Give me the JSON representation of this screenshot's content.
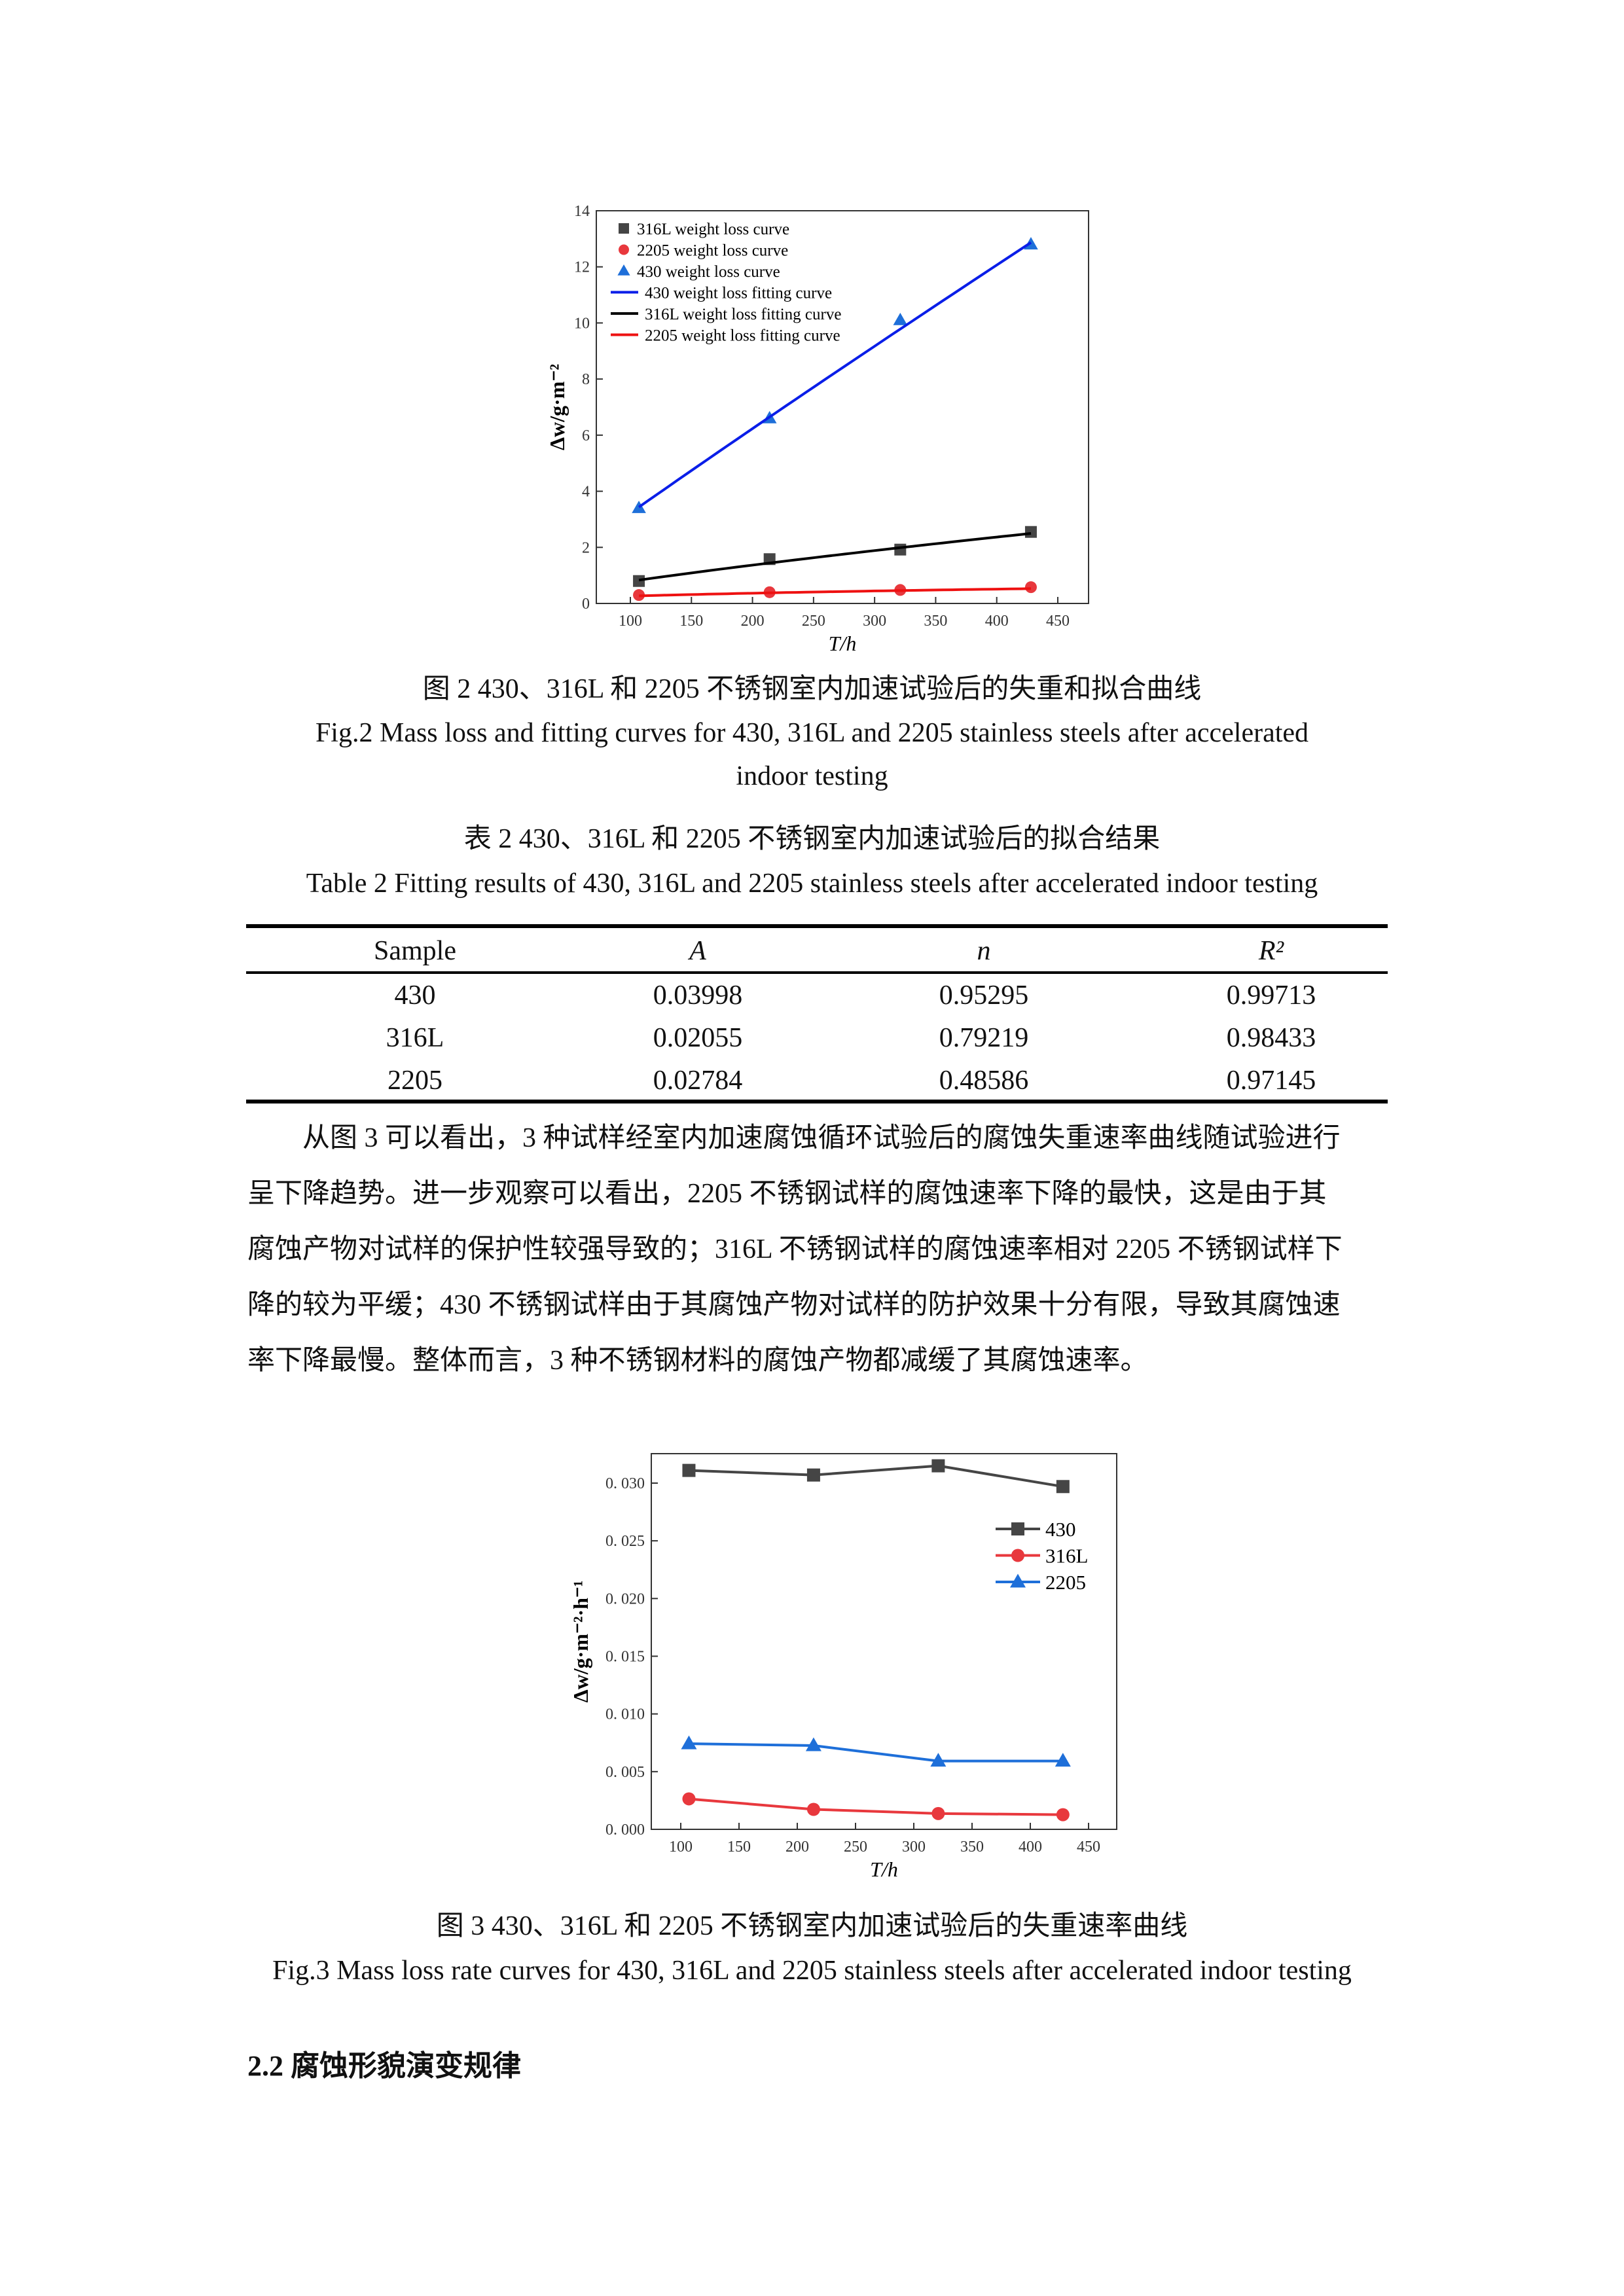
{
  "figure2": {
    "caption_cn": "图 2 430、316L 和 2205 不锈钢室内加速试验后的失重和拟合曲线",
    "caption_en_line1": "Fig.2 Mass loss and fitting curves for 430, 316L and 2205 stainless steels after accelerated",
    "caption_en_line2": "indoor testing"
  },
  "table2": {
    "caption_cn": "表 2 430、316L 和 2205 不锈钢室内加速试验后的拟合结果",
    "caption_en": "Table 2 Fitting results of 430, 316L and 2205 stainless steels after accelerated indoor testing",
    "headers": [
      "Sample",
      "A",
      "n",
      "R²"
    ],
    "rows": [
      [
        "430",
        "0.03998",
        "0.95295",
        "0.99713"
      ],
      [
        "316L",
        "0.02055",
        "0.79219",
        "0.98433"
      ],
      [
        "2205",
        "0.02784",
        "0.48586",
        "0.97145"
      ]
    ]
  },
  "paragraph": {
    "lines": [
      "从图 3 可以看出，3 种试样经室内加速腐蚀循环试验后的腐蚀失重速率曲线随试验进行",
      "呈下降趋势。进一步观察可以看出，2205 不锈钢试样的腐蚀速率下降的最快，这是由于其",
      "腐蚀产物对试样的保护性较强导致的；316L 不锈钢试样的腐蚀速率相对 2205 不锈钢试样下",
      "降的较为平缓；430 不锈钢试样由于其腐蚀产物对试样的防护效果十分有限，导致其腐蚀速",
      "率下降最慢。整体而言，3 种不锈钢材料的腐蚀产物都减缓了其腐蚀速率。"
    ]
  },
  "figure3": {
    "caption_cn": "图 3 430、316L 和 2205 不锈钢室内加速试验后的失重速率曲线",
    "caption_en": "Fig.3 Mass loss rate curves for 430, 316L and 2205 stainless steels after accelerated indoor testing"
  },
  "section_heading": "2.2 腐蚀形貌演变规律",
  "chart_data": [
    {
      "type": "scatter",
      "xlabel": "T/h",
      "ylabel": "Δw/g·m⁻²",
      "xlim": [
        75,
        475
      ],
      "ylim": [
        0,
        14
      ],
      "xticks": [
        "100",
        "150",
        "200",
        "250",
        "300",
        "350",
        "400",
        "450"
      ],
      "yticks": [
        "0",
        "2",
        "4",
        "6",
        "8",
        "10",
        "12",
        "14"
      ],
      "grid": false,
      "legend_position": "top-left",
      "series": [
        {
          "name": "316L weight loss curve",
          "kind": "points",
          "marker": "square",
          "color": "#454545",
          "x": [
            107,
            214,
            321,
            428
          ],
          "y": [
            0.8,
            1.58,
            1.92,
            2.55
          ]
        },
        {
          "name": "2205 weight loss curve",
          "kind": "points",
          "marker": "circle",
          "color": "#e8383d",
          "x": [
            107,
            214,
            321,
            428
          ],
          "y": [
            0.3,
            0.4,
            0.48,
            0.58
          ]
        },
        {
          "name": "430 weight loss curve",
          "kind": "points",
          "marker": "triangle",
          "color": "#1e6fd9",
          "x": [
            107,
            214,
            321,
            428
          ],
          "y": [
            3.4,
            6.6,
            10.1,
            12.8
          ]
        },
        {
          "name": "430 weight loss fitting curve",
          "kind": "fit",
          "color": "#0a1ee8",
          "A": 0.03998,
          "n": 0.95295,
          "x_range": [
            107,
            428
          ]
        },
        {
          "name": "316L weight loss fitting curve",
          "kind": "fit",
          "color": "#000000",
          "A": 0.02055,
          "n": 0.79219,
          "x_range": [
            107,
            428
          ]
        },
        {
          "name": "2205 weight loss fitting curve",
          "kind": "fit",
          "color": "#ee1111",
          "A": 0.02784,
          "n": 0.48586,
          "x_range": [
            107,
            428
          ]
        }
      ]
    },
    {
      "type": "line",
      "xlabel": "T/h",
      "ylabel": "Δw/g·m⁻²·h⁻¹",
      "xlim": [
        75,
        475
      ],
      "ylim": [
        0,
        0.0325
      ],
      "xticks": [
        "100",
        "150",
        "200",
        "250",
        "300",
        "350",
        "400",
        "450"
      ],
      "yticks": [
        "0. 000",
        "0. 005",
        "0. 010",
        "0. 015",
        "0. 020",
        "0. 025",
        "0. 030"
      ],
      "grid": false,
      "legend_position": "top-right",
      "series": [
        {
          "name": "430",
          "marker": "square",
          "color": "#454545",
          "x": [
            107,
            214,
            321,
            428
          ],
          "y": [
            0.0311,
            0.0307,
            0.0315,
            0.0297
          ]
        },
        {
          "name": "316L",
          "marker": "circle",
          "color": "#e8383d",
          "x": [
            107,
            214,
            321,
            428
          ],
          "y": [
            0.00264,
            0.00173,
            0.00137,
            0.00127
          ]
        },
        {
          "name": "2205",
          "marker": "triangle",
          "color": "#1e6fd9",
          "x": [
            107,
            214,
            321,
            428
          ],
          "y": [
            0.00742,
            0.00726,
            0.00592,
            0.00592
          ]
        }
      ]
    }
  ]
}
